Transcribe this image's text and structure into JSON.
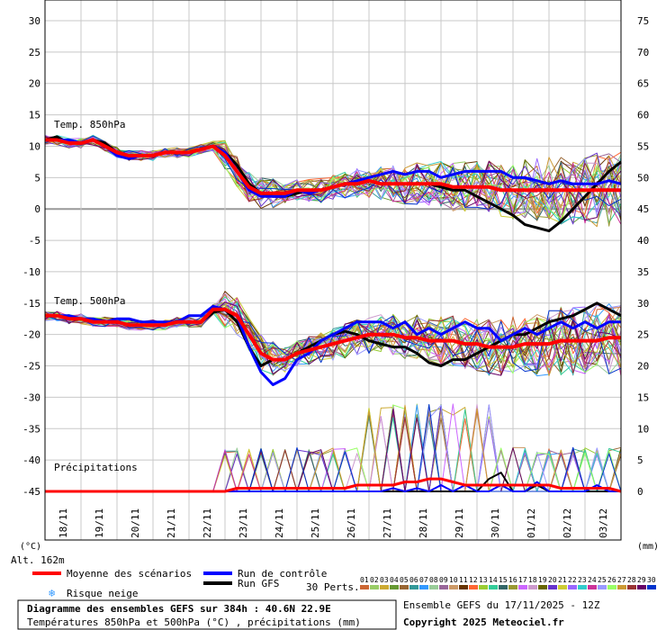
{
  "chart_data": {
    "type": "line",
    "title": "Diagramme des ensembles GEFS sur 384h : 40.6N 22.9E",
    "subtitle": "Températures 850hPa et 500hPa (°C) , précipitations (mm)",
    "run_info": "Ensemble GEFS du 17/11/2025 - 12Z",
    "copyright": "Copyright 2025 Meteociel.fr",
    "altitude": "Alt. 162m",
    "left_unit": "(°C)",
    "right_unit": "(mm)",
    "labels": {
      "t850": "Temp. 850hPa",
      "t500": "Temp. 500hPa",
      "precip": "Précipitations"
    },
    "left_axis": {
      "ylim": [
        -45,
        30
      ],
      "ticks": [
        "30",
        "25",
        "20",
        "15",
        "10",
        "5",
        "0",
        "-5",
        "-10",
        "-15",
        "-20",
        "-25",
        "-30",
        "-35",
        "-40",
        "-45"
      ]
    },
    "right_axis": {
      "ylim": [
        0,
        75
      ],
      "ticks": [
        "75",
        "70",
        "65",
        "60",
        "55",
        "50",
        "45",
        "40",
        "35",
        "30",
        "25",
        "20",
        "15",
        "10",
        "5",
        "0"
      ]
    },
    "x_dates": [
      "18/11",
      "19/11",
      "20/11",
      "21/11",
      "22/11",
      "23/11",
      "24/11",
      "25/11",
      "26/11",
      "27/11",
      "28/11",
      "29/11",
      "30/11",
      "01/12",
      "02/12",
      "03/12"
    ],
    "legend": {
      "mean": "Moyenne des scénarios",
      "control": "Run de contrôle",
      "gfs": "Run GFS",
      "snow": "Risque neige",
      "perts": "30 Perts.",
      "pert_labels": [
        "01",
        "02",
        "03",
        "04",
        "05",
        "06",
        "07",
        "08",
        "09",
        "10",
        "11",
        "12",
        "13",
        "14",
        "15",
        "16",
        "17",
        "18",
        "19",
        "20",
        "21",
        "22",
        "23",
        "24",
        "25",
        "26",
        "27",
        "28",
        "29",
        "30"
      ],
      "colors": {
        "mean": "#ff0000",
        "control": "#0000ff",
        "gfs": "#000000",
        "snow": "#3399ff"
      },
      "pert_colors": [
        "#cc6633",
        "#99cc66",
        "#ccaa33",
        "#669933",
        "#996633",
        "#339999",
        "#3399ff",
        "#99cc99",
        "#996699",
        "#cc9966",
        "#663300",
        "#ff6633",
        "#99cc33",
        "#33cc99",
        "#336666",
        "#999933",
        "#cc66ff",
        "#cc99cc",
        "#666600",
        "#6633cc",
        "#cccc33",
        "#9966ff",
        "#33cccc",
        "#cc3399",
        "#9999ff",
        "#99ff66",
        "#cc9933",
        "#993333",
        "#660066",
        "#0033cc"
      ]
    },
    "series": [
      {
        "name": "Moyenne des scénarios",
        "t850": [
          11,
          11,
          10.5,
          10.5,
          11,
          10,
          9,
          8.5,
          8.5,
          8.5,
          9,
          9,
          9,
          9.5,
          10,
          8.5,
          6,
          3.5,
          2.5,
          2.5,
          2.5,
          3,
          3,
          3,
          3.5,
          4,
          4,
          4.5,
          4,
          4,
          4,
          4,
          4,
          4,
          3.5,
          3.5,
          3.5,
          3.5,
          3,
          3,
          3,
          3,
          3,
          3,
          3,
          3,
          3,
          3,
          3
        ],
        "t500": [
          -17,
          -17,
          -17.5,
          -17.5,
          -18,
          -18,
          -18,
          -18.5,
          -18.5,
          -18.5,
          -18.5,
          -18,
          -18,
          -18,
          -16,
          -16,
          -17,
          -20,
          -23,
          -24,
          -24,
          -23,
          -22.5,
          -22,
          -21.5,
          -21,
          -20.5,
          -20,
          -20,
          -20,
          -20.5,
          -20.5,
          -21,
          -21,
          -21,
          -21.5,
          -21.5,
          -22,
          -22,
          -22,
          -21.5,
          -21.5,
          -21.5,
          -21,
          -21,
          -21,
          -21,
          -20.5,
          -20.5
        ],
        "precip": [
          0,
          0,
          0,
          0,
          0,
          0,
          0,
          0,
          0,
          0,
          0,
          0,
          0,
          0,
          0,
          0,
          0.5,
          0.5,
          0.5,
          0.5,
          0.5,
          0.5,
          0.5,
          0.5,
          0.5,
          0.5,
          1,
          1,
          1,
          1,
          1.5,
          1.5,
          2,
          2,
          1.5,
          1,
          1,
          1,
          1,
          1,
          1,
          1,
          1,
          0.5,
          0.5,
          0.5,
          0.5,
          0.5,
          0
        ]
      },
      {
        "name": "Run de contrôle",
        "t850": [
          11,
          11,
          11,
          10.5,
          11,
          10,
          8.5,
          8,
          8.5,
          8.5,
          9,
          9,
          9,
          9.5,
          10,
          9,
          6,
          3,
          2,
          2,
          2,
          3,
          2.5,
          3,
          3.5,
          4,
          4.5,
          5,
          5.5,
          6,
          5.5,
          6,
          6,
          5,
          5.5,
          6,
          6,
          6,
          6,
          5,
          5,
          4.5,
          4,
          4.5,
          4,
          4,
          4,
          4.5,
          4
        ],
        "t500": [
          -17,
          -17,
          -17,
          -17.5,
          -17.5,
          -18,
          -17.5,
          -17.5,
          -18,
          -18,
          -18,
          -18,
          -17,
          -17,
          -15.5,
          -16,
          -17,
          -22,
          -26,
          -28,
          -27,
          -24,
          -23,
          -21,
          -20,
          -19,
          -18,
          -18,
          -18,
          -19,
          -18,
          -20,
          -19,
          -20,
          -19,
          -18,
          -19,
          -19,
          -21,
          -20,
          -19,
          -20,
          -19,
          -18,
          -19,
          -18,
          -19,
          -18,
          -18
        ],
        "precip": [
          0,
          0,
          0,
          0,
          0,
          0,
          0,
          0,
          0,
          0,
          0,
          0,
          0,
          0,
          0,
          0,
          0,
          0,
          0,
          0,
          0,
          0,
          0,
          0,
          0,
          0,
          0,
          0,
          0,
          0.5,
          0,
          0.5,
          0,
          1,
          0,
          1,
          0,
          0,
          1,
          0,
          0,
          1.5,
          0,
          0,
          0,
          0,
          1,
          0,
          0
        ]
      },
      {
        "name": "Run GFS",
        "t850": [
          11,
          11.5,
          10.5,
          10.5,
          11,
          10.5,
          9,
          8.5,
          8.5,
          8.5,
          9,
          9,
          9,
          9.5,
          10,
          9,
          7,
          4,
          2.5,
          2,
          2,
          2.5,
          3,
          3,
          3.5,
          4,
          4,
          4.5,
          4,
          4,
          4,
          4,
          4,
          3.5,
          3,
          3,
          2,
          1,
          0,
          -1,
          -2.5,
          -3,
          -3.5,
          -2,
          0,
          2,
          4,
          6,
          7.5
        ],
        "t500": [
          -17,
          -17,
          -17.5,
          -17.5,
          -18,
          -18,
          -18,
          -18.5,
          -18.5,
          -18.5,
          -18.5,
          -18,
          -18,
          -18,
          -16.5,
          -16,
          -18,
          -22,
          -25,
          -24,
          -24,
          -23,
          -22,
          -21,
          -20,
          -19.5,
          -20,
          -21,
          -21.5,
          -22,
          -22,
          -23,
          -24.5,
          -25,
          -24,
          -24,
          -23,
          -22,
          -21,
          -20,
          -20,
          -19,
          -18,
          -17.5,
          -17,
          -16,
          -15,
          -16,
          -17
        ],
        "precip": [
          0,
          0,
          0,
          0,
          0,
          0,
          0,
          0,
          0,
          0,
          0,
          0,
          0,
          0,
          0,
          0,
          0,
          0,
          0,
          0,
          0,
          0,
          0,
          0,
          0,
          0,
          0,
          0,
          0,
          0,
          0,
          0,
          0,
          0,
          0,
          0,
          0,
          2,
          3,
          0,
          0,
          1,
          0,
          0,
          0,
          0,
          0,
          0,
          0
        ]
      }
    ]
  }
}
